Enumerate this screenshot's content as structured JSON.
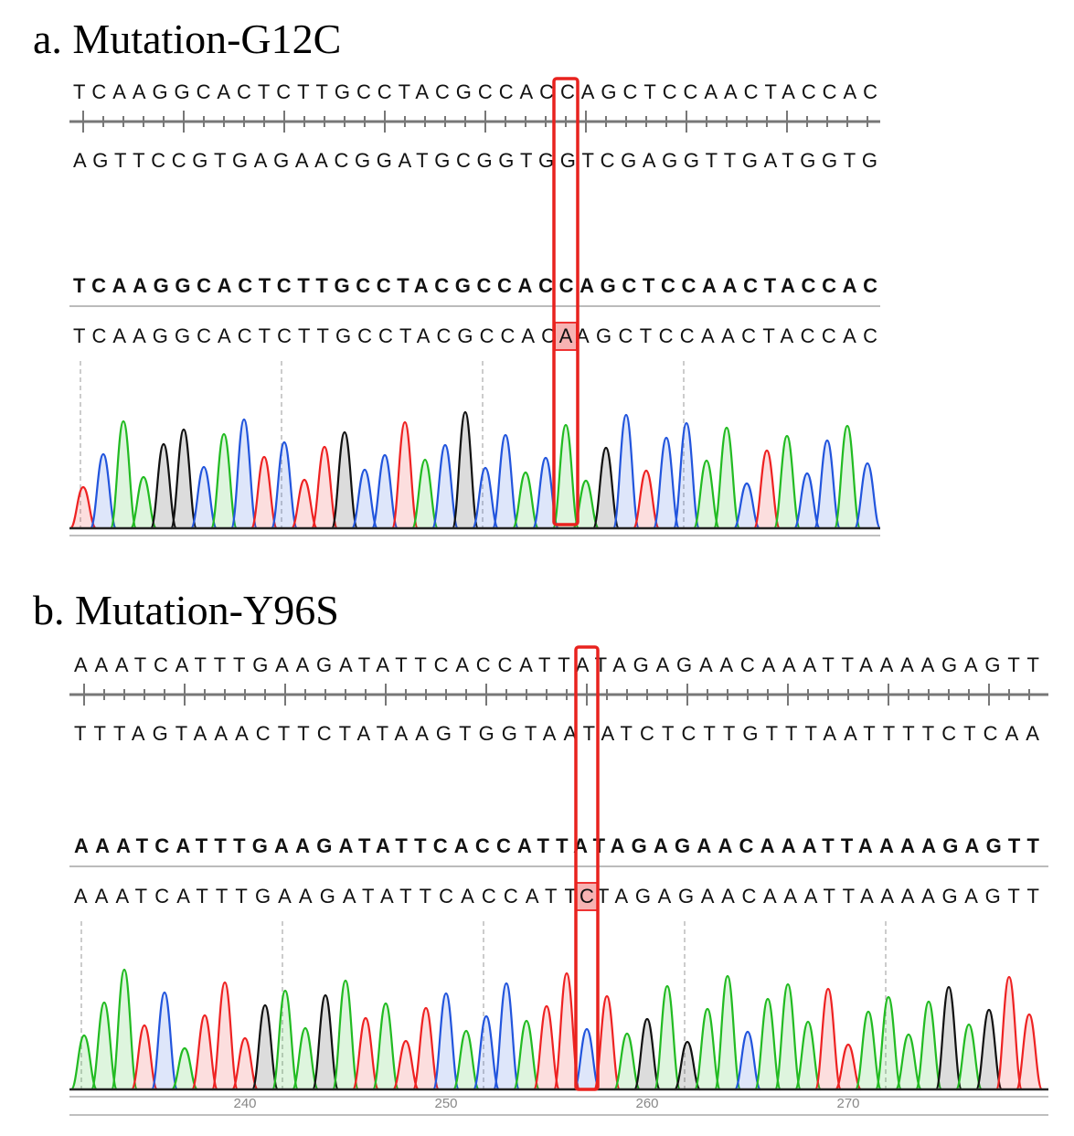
{
  "panels": [
    {
      "title": "a. Mutation-G12C",
      "reference": "TCAAGGCACTCTTGCCTACGCCACCAGCTCCAACTACCAC",
      "complement": "AGTTCCGTGAGAACGGATGCGGTGGTCGAGGTTGATGGTG",
      "consensus": "TCAAGGCACTCTTGCCTACGCCACCAGCTCCAACTACCAC",
      "sample": {
        "prefix": "TCAAGGCACTCTTGCCTACGCCAC",
        "base": "A",
        "suffix": "AGCTCCAACTACCAC"
      }
    },
    {
      "title": "b. Mutation-Y96S",
      "reference": "AAATCATTTGAAGATATTCACCATTATAGAGAACAAATTAAAAGAGTT",
      "complement": "TTTAGTAAACTTCTATAAGTGGTAATATCTCTTGTTTAATTTTCTCAA",
      "consensus": "AAATCATTTGAAGATATTCACCATTATAGAGAACAAATTAAAAGAGTT",
      "sample": {
        "prefix": "AAATCATTTGAAGATATTCACCATT",
        "base": "C",
        "suffix": "TAGAGAACAAATTAAAAGAGTT"
      },
      "axis_ticks": [
        240,
        250,
        260,
        270
      ]
    }
  ]
}
